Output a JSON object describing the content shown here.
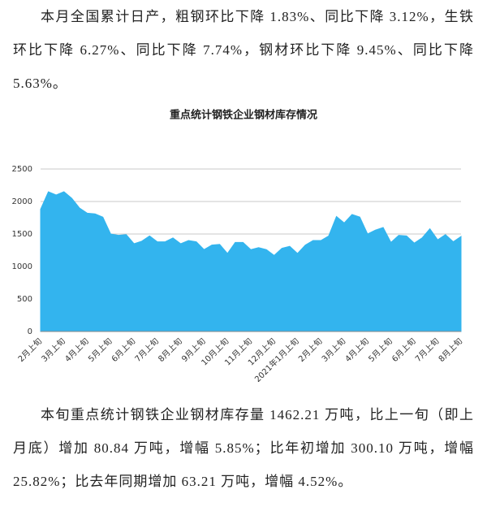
{
  "paragraphs": [
    "本月全国累计日产，粗钢环比下降 1.83%、同比下降 3.12%，生铁环比下降 6.27%、同比下降 7.74%，钢材环比下降 9.45%、同比下降 5.63%。",
    "本旬重点统计钢铁企业钢材库存量 1462.21 万吨，比上一旬（即上月底）增加 80.84 万吨，增幅 5.85%；比年初增加 300.10 万吨，增幅 25.82%；比去年同期增加 63.21 万吨，增幅 4.52%。"
  ],
  "chart_data": {
    "type": "area",
    "title": "重点统计钢铁企业钢材库存情况",
    "categories": [
      "2月上旬",
      null,
      null,
      "3月上旬",
      null,
      null,
      "4月上旬",
      null,
      null,
      "5月上旬",
      null,
      null,
      "6月上旬",
      null,
      null,
      "7月上旬",
      null,
      null,
      "8月上旬",
      null,
      null,
      "9月上旬",
      null,
      null,
      "10月上旬",
      null,
      null,
      "11月上旬",
      null,
      null,
      "12月上旬",
      null,
      null,
      "2021年1月上旬",
      null,
      null,
      "2月上旬",
      null,
      null,
      "3月上旬",
      null,
      null,
      "4月上旬",
      null,
      null,
      "5月上旬",
      null,
      null,
      "6月上旬",
      null,
      null,
      "7月上旬",
      null,
      null,
      "8月上旬"
    ],
    "series": [
      {
        "color": "#33b4ee",
        "values": [
          1880,
          2150,
          2100,
          2150,
          2050,
          1900,
          1820,
          1810,
          1760,
          1500,
          1480,
          1490,
          1350,
          1390,
          1470,
          1380,
          1380,
          1440,
          1350,
          1400,
          1380,
          1260,
          1330,
          1340,
          1200,
          1370,
          1370,
          1260,
          1290,
          1260,
          1170,
          1280,
          1310,
          1200,
          1330,
          1400,
          1400,
          1470,
          1770,
          1670,
          1800,
          1760,
          1500,
          1560,
          1600,
          1370,
          1480,
          1470,
          1360,
          1440,
          1580,
          1410,
          1490,
          1381,
          1462
        ]
      }
    ],
    "ylim": [
      0,
      2500
    ],
    "yticks": [
      0,
      500,
      1000,
      1500,
      2000,
      2500
    ],
    "grid": true
  }
}
